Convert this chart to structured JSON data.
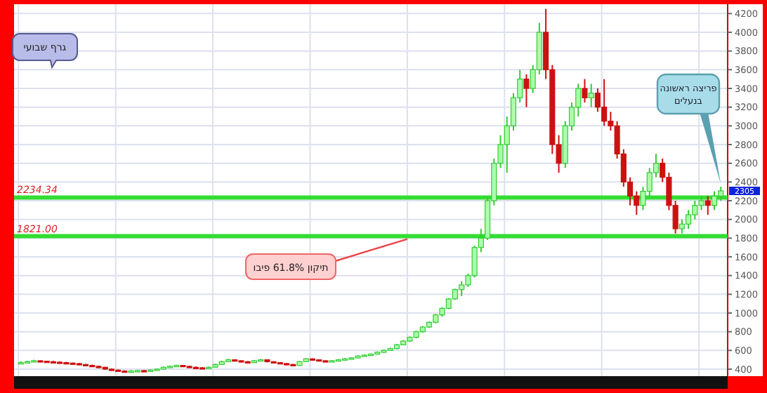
{
  "chart_data": {
    "type": "candlestick",
    "categories": [
      null,
      null,
      null,
      null,
      null,
      null,
      null,
      null,
      null,
      null,
      null,
      null,
      null,
      null,
      null,
      null,
      null,
      null,
      null,
      null,
      null,
      null,
      null,
      null,
      null,
      null,
      null,
      null,
      null,
      null,
      null,
      null,
      null,
      null,
      null,
      null,
      null,
      null,
      null,
      null,
      null,
      null,
      null,
      null,
      null,
      null,
      null,
      null,
      null,
      null,
      null,
      null,
      null,
      null,
      null,
      null,
      null,
      null,
      null,
      null,
      null,
      null,
      null,
      null,
      null,
      null,
      null,
      null,
      null,
      null,
      null,
      null,
      null,
      null,
      null,
      null,
      null,
      null,
      null,
      null,
      null,
      null,
      null,
      null,
      null,
      null,
      null,
      null,
      null,
      null,
      null,
      null,
      null,
      null,
      null,
      null,
      null,
      null,
      null,
      null,
      null,
      null,
      null,
      null,
      null,
      null,
      null,
      null,
      null
    ],
    "ohlc": [
      [
        460,
        485,
        455,
        470
      ],
      [
        470,
        490,
        465,
        480
      ],
      [
        480,
        500,
        475,
        490
      ],
      [
        490,
        495,
        478,
        485
      ],
      [
        485,
        490,
        472,
        480
      ],
      [
        480,
        488,
        468,
        475
      ],
      [
        475,
        482,
        462,
        470
      ],
      [
        470,
        478,
        458,
        465
      ],
      [
        465,
        470,
        452,
        460
      ],
      [
        460,
        465,
        442,
        450
      ],
      [
        450,
        455,
        432,
        440
      ],
      [
        440,
        448,
        422,
        430
      ],
      [
        430,
        438,
        412,
        420
      ],
      [
        420,
        425,
        392,
        400
      ],
      [
        400,
        408,
        382,
        390
      ],
      [
        390,
        396,
        372,
        380
      ],
      [
        380,
        388,
        368,
        375
      ],
      [
        375,
        390,
        370,
        380
      ],
      [
        380,
        392,
        375,
        385
      ],
      [
        385,
        390,
        372,
        380
      ],
      [
        380,
        398,
        375,
        390
      ],
      [
        390,
        408,
        385,
        400
      ],
      [
        400,
        428,
        395,
        420
      ],
      [
        420,
        438,
        415,
        430
      ],
      [
        430,
        448,
        425,
        440
      ],
      [
        440,
        445,
        422,
        430
      ],
      [
        430,
        435,
        412,
        420
      ],
      [
        420,
        428,
        408,
        415
      ],
      [
        415,
        420,
        402,
        410
      ],
      [
        410,
        428,
        405,
        420
      ],
      [
        420,
        458,
        415,
        450
      ],
      [
        450,
        488,
        445,
        480
      ],
      [
        480,
        510,
        475,
        500
      ],
      [
        500,
        505,
        482,
        490
      ],
      [
        490,
        495,
        472,
        480
      ],
      [
        480,
        485,
        462,
        470
      ],
      [
        470,
        498,
        465,
        490
      ],
      [
        490,
        510,
        485,
        500
      ],
      [
        500,
        505,
        472,
        480
      ],
      [
        480,
        485,
        462,
        470
      ],
      [
        470,
        475,
        452,
        460
      ],
      [
        460,
        465,
        442,
        450
      ],
      [
        450,
        455,
        432,
        440
      ],
      [
        440,
        488,
        435,
        480
      ],
      [
        480,
        518,
        475,
        510
      ],
      [
        510,
        515,
        492,
        500
      ],
      [
        500,
        505,
        482,
        490
      ],
      [
        490,
        495,
        472,
        480
      ],
      [
        480,
        498,
        475,
        490
      ],
      [
        490,
        508,
        485,
        500
      ],
      [
        500,
        518,
        495,
        510
      ],
      [
        510,
        528,
        505,
        520
      ],
      [
        520,
        548,
        515,
        540
      ],
      [
        540,
        558,
        535,
        550
      ],
      [
        550,
        568,
        545,
        560
      ],
      [
        560,
        590,
        555,
        580
      ],
      [
        580,
        610,
        575,
        600
      ],
      [
        600,
        630,
        595,
        620
      ],
      [
        620,
        670,
        615,
        660
      ],
      [
        660,
        710,
        655,
        700
      ],
      [
        700,
        750,
        690,
        740
      ],
      [
        740,
        810,
        730,
        800
      ],
      [
        800,
        860,
        790,
        850
      ],
      [
        850,
        910,
        840,
        900
      ],
      [
        900,
        990,
        890,
        980
      ],
      [
        980,
        1060,
        960,
        1050
      ],
      [
        1050,
        1160,
        1040,
        1150
      ],
      [
        1150,
        1260,
        1140,
        1250
      ],
      [
        1250,
        1340,
        1180,
        1300
      ],
      [
        1300,
        1420,
        1280,
        1400
      ],
      [
        1400,
        1720,
        1380,
        1700
      ],
      [
        1700,
        1900,
        1650,
        1800
      ],
      [
        1800,
        2250,
        1780,
        2200
      ],
      [
        2200,
        2650,
        2150,
        2600
      ],
      [
        2600,
        2900,
        2550,
        2800
      ],
      [
        2800,
        3100,
        2500,
        3000
      ],
      [
        3000,
        3350,
        2950,
        3300
      ],
      [
        3300,
        3600,
        3250,
        3500
      ],
      [
        3500,
        3550,
        3200,
        3400
      ],
      [
        3400,
        3650,
        3350,
        3600
      ],
      [
        3600,
        4100,
        3550,
        4000
      ],
      [
        4000,
        4250,
        3500,
        3600
      ],
      [
        3600,
        3650,
        2700,
        2800
      ],
      [
        2800,
        2900,
        2500,
        2600
      ],
      [
        2600,
        3050,
        2550,
        3000
      ],
      [
        3000,
        3250,
        2950,
        3200
      ],
      [
        3200,
        3450,
        3100,
        3400
      ],
      [
        3400,
        3500,
        3250,
        3300
      ],
      [
        3300,
        3450,
        3200,
        3350
      ],
      [
        3350,
        3400,
        3150,
        3200
      ],
      [
        3200,
        3500,
        3000,
        3050
      ],
      [
        3050,
        3150,
        2950,
        3000
      ],
      [
        3000,
        3050,
        2650,
        2700
      ],
      [
        2700,
        2750,
        2350,
        2400
      ],
      [
        2400,
        2450,
        2150,
        2250
      ],
      [
        2250,
        2300,
        2050,
        2150
      ],
      [
        2150,
        2350,
        2100,
        2300
      ],
      [
        2300,
        2550,
        2250,
        2500
      ],
      [
        2500,
        2700,
        2450,
        2600
      ],
      [
        2600,
        2650,
        2400,
        2450
      ],
      [
        2450,
        2500,
        2100,
        2150
      ],
      [
        2150,
        2200,
        1850,
        1900
      ],
      [
        1900,
        2000,
        1850,
        1950
      ],
      [
        1950,
        2100,
        1900,
        2050
      ],
      [
        2050,
        2200,
        2000,
        2150
      ],
      [
        2150,
        2250,
        2100,
        2200
      ],
      [
        2200,
        2250,
        2050,
        2150
      ],
      [
        2150,
        2300,
        2100,
        2250
      ],
      [
        2250,
        2350,
        2200,
        2305
      ]
    ],
    "ylim": [
      325,
      4300
    ],
    "yticks": [
      400,
      600,
      800,
      1000,
      1200,
      1400,
      1600,
      1800,
      2000,
      2200,
      2400,
      2600,
      2800,
      3000,
      3200,
      3400,
      3600,
      3800,
      4000,
      4200
    ],
    "grid": true,
    "tick_labels": "y",
    "ref_lines": [
      {
        "axis": "y",
        "value": 2234.34,
        "label": "2234.34",
        "color": "#33dd33"
      },
      {
        "axis": "y",
        "value": 1821.0,
        "label": "1821.00",
        "color": "#33dd33"
      }
    ],
    "annotations": [
      "גרף שבועי",
      "תיקון 61.8% פיבו",
      "פריצה ראשונה בנעלים",
      "2305"
    ]
  }
}
